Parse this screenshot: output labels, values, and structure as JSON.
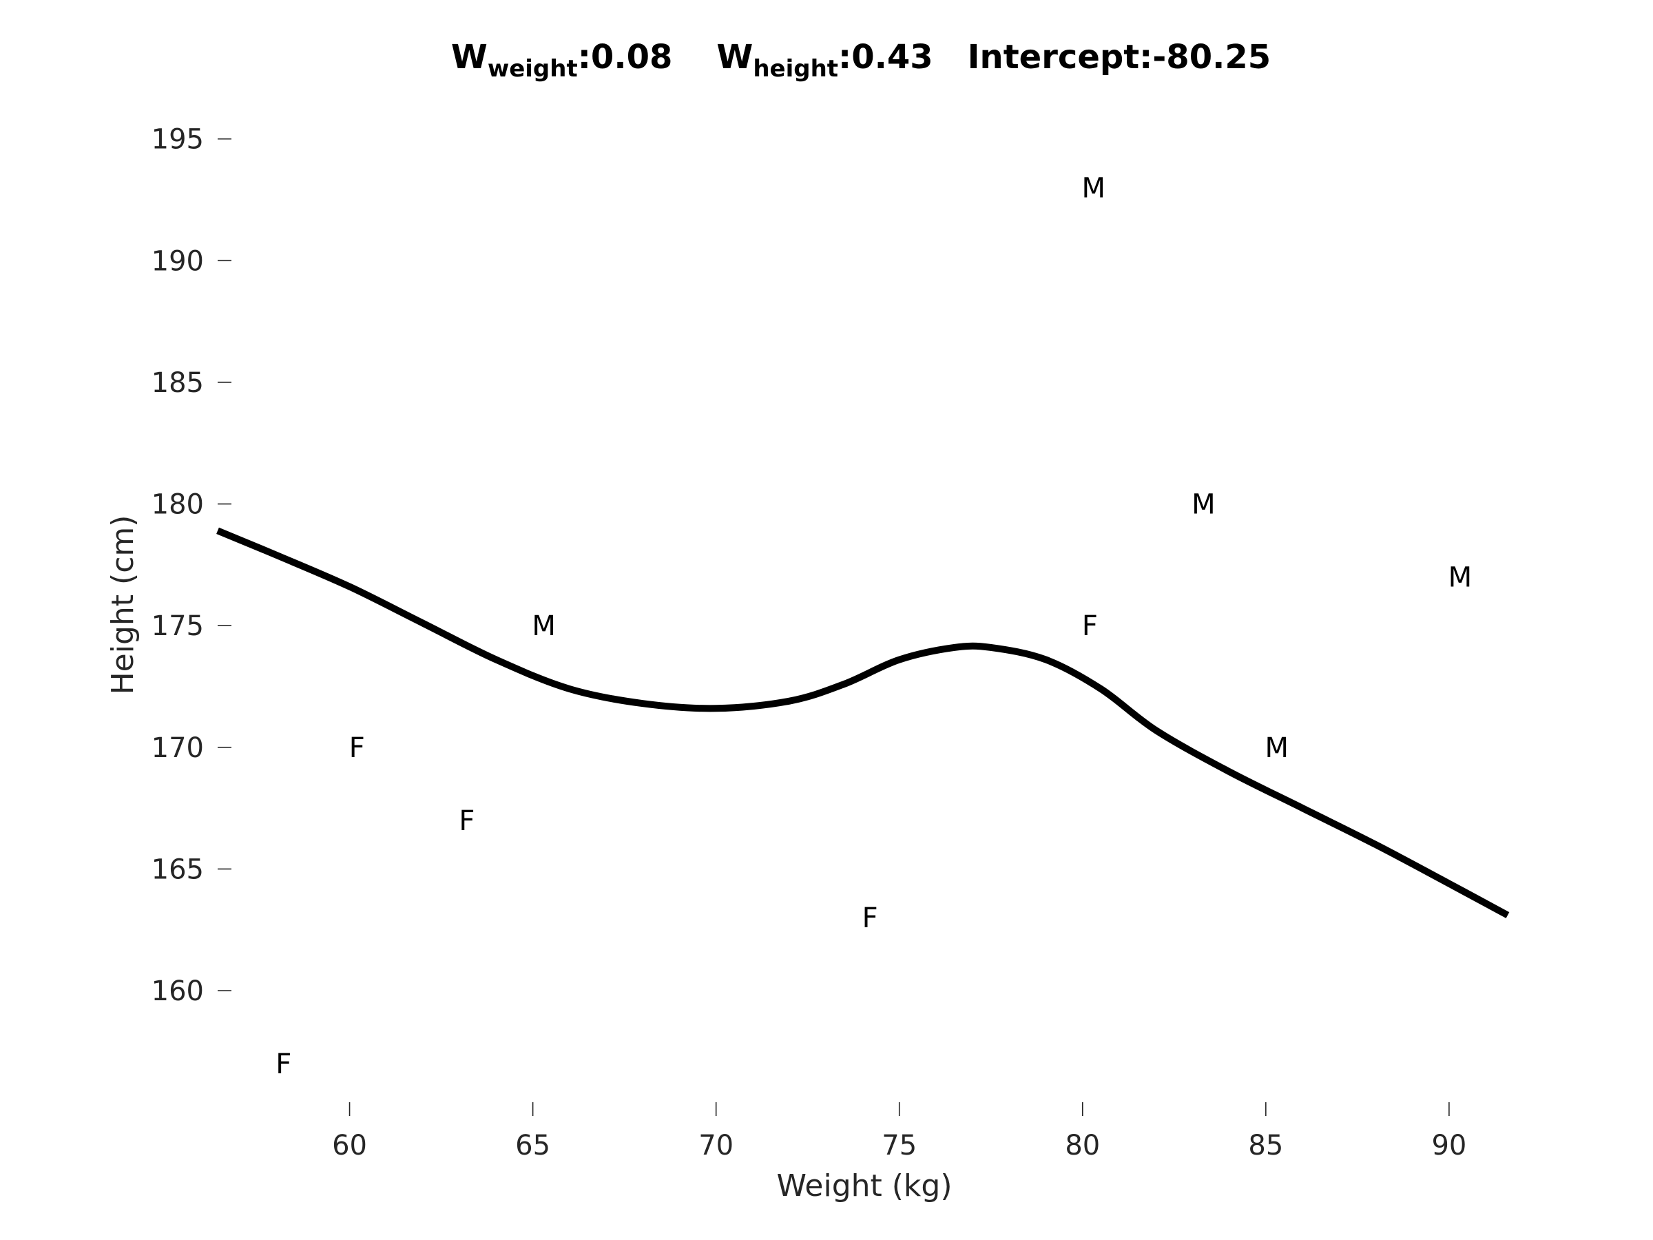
{
  "chart_data": {
    "type": "scatter",
    "title_parts": {
      "w_weight_symbol": "W",
      "w_weight_sub": "weight",
      "w_weight_value": ":0.08",
      "w_height_symbol": "W",
      "w_height_sub": "height",
      "w_height_value": ":0.43",
      "intercept": "Intercept:-80.25"
    },
    "xlabel": "Weight (kg)",
    "ylabel": "Height (cm)",
    "xlim": [
      56.4,
      91.9
    ],
    "ylim": [
      155.5,
      197
    ],
    "xticks": [
      60,
      65,
      70,
      75,
      80,
      85,
      90
    ],
    "yticks": [
      160,
      165,
      170,
      175,
      180,
      185,
      190,
      195
    ],
    "grid": false,
    "points": [
      {
        "x": 58.2,
        "y": 157,
        "label": "F"
      },
      {
        "x": 60.2,
        "y": 170,
        "label": "F"
      },
      {
        "x": 63.2,
        "y": 167,
        "label": "F"
      },
      {
        "x": 65.3,
        "y": 175,
        "label": "M"
      },
      {
        "x": 74.2,
        "y": 163,
        "label": "F"
      },
      {
        "x": 80.2,
        "y": 175,
        "label": "F"
      },
      {
        "x": 80.3,
        "y": 193,
        "label": "M"
      },
      {
        "x": 83.3,
        "y": 180,
        "label": "M"
      },
      {
        "x": 85.3,
        "y": 170,
        "label": "M"
      },
      {
        "x": 90.3,
        "y": 177,
        "label": "M"
      }
    ],
    "curve": {
      "color": "#000000",
      "x": [
        56.4,
        58,
        60,
        62,
        64,
        66,
        68,
        70,
        72,
        73.5,
        75,
        76.5,
        77.5,
        79,
        80.5,
        82,
        84,
        86,
        88,
        90,
        91.6
      ],
      "y": [
        178.9,
        177.9,
        176.6,
        175.1,
        173.6,
        172.4,
        171.8,
        171.6,
        171.9,
        172.6,
        173.6,
        174.1,
        174.1,
        173.6,
        172.4,
        170.7,
        169.0,
        167.5,
        166.0,
        164.4,
        163.1
      ]
    }
  }
}
